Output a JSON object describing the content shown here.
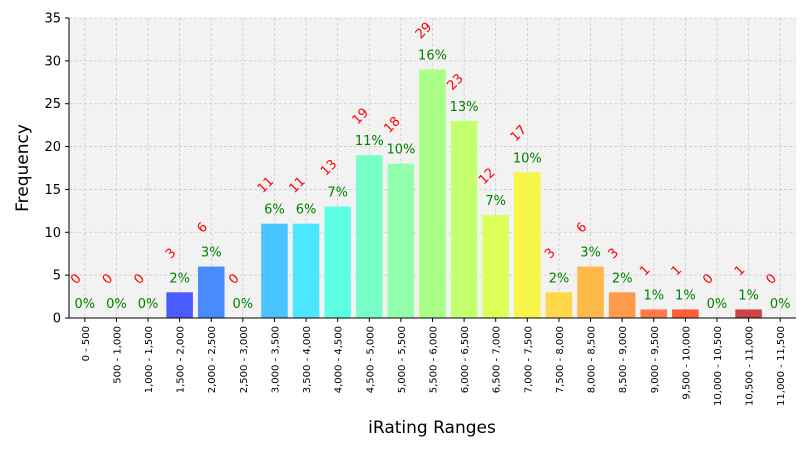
{
  "chart_data": {
    "type": "bar",
    "title": "",
    "xlabel": "iRating Ranges",
    "ylabel": "Frequency",
    "ylim": [
      0,
      35
    ],
    "yticks": [
      0,
      5,
      10,
      15,
      20,
      25,
      30,
      35
    ],
    "grid": true,
    "categories": [
      "0 - 500",
      "500 - 1,000",
      "1,000 - 1,500",
      "1,500 - 2,000",
      "2,000 - 2,500",
      "2,500 - 3,000",
      "3,000 - 3,500",
      "3,500 - 4,000",
      "4,000 - 4,500",
      "4,500 - 5,000",
      "5,000 - 5,500",
      "5,500 - 6,000",
      "6,000 - 6,500",
      "6,500 - 7,000",
      "7,000 - 7,500",
      "7,500 - 8,000",
      "8,000 - 8,500",
      "8,500 - 9,000",
      "9,000 - 9,500",
      "9,500 - 10,000",
      "10,000 - 10,500",
      "10,500 - 11,000",
      "11,000 - 11,500"
    ],
    "values": [
      0,
      0,
      0,
      3,
      6,
      0,
      11,
      11,
      13,
      19,
      18,
      29,
      23,
      12,
      17,
      3,
      6,
      3,
      1,
      1,
      0,
      1,
      0
    ],
    "percent_labels": [
      "0%",
      "0%",
      "0%",
      "2%",
      "3%",
      "0%",
      "6%",
      "6%",
      "7%",
      "11%",
      "10%",
      "16%",
      "13%",
      "7%",
      "10%",
      "2%",
      "3%",
      "2%",
      "1%",
      "1%",
      "0%",
      "1%",
      "0%"
    ],
    "colors": [
      "#3a2bff",
      "#3b3fff",
      "#3d4dff",
      "#4a5cff",
      "#4a8aff",
      "#44aaff",
      "#49c4ff",
      "#4ce6ff",
      "#5cffe6",
      "#78ffc8",
      "#94ffaa",
      "#aaff88",
      "#c4ff70",
      "#ddff5c",
      "#f5f54a",
      "#ffd84a",
      "#ffb84a",
      "#ff9a4a",
      "#ff7a4a",
      "#ff5c3a",
      "#ee3a3a",
      "#cc4444",
      "#aa2222"
    ]
  }
}
